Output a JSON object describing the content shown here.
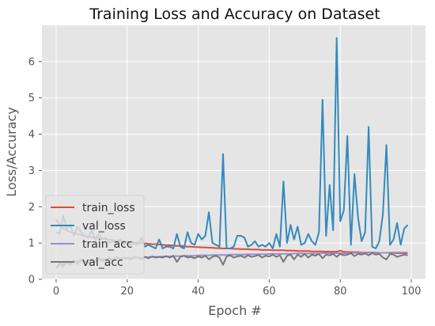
{
  "chart_data": {
    "type": "line",
    "title": "Training Loss and Accuracy on Dataset",
    "xlabel": "Epoch #",
    "ylabel": "Loss/Accuracy",
    "xlim": [
      -4,
      104
    ],
    "ylim": [
      0,
      7.0
    ],
    "grid": true,
    "legend_position": "lower-left",
    "xticks": [
      0,
      20,
      40,
      60,
      80,
      100
    ],
    "yticks": [
      0,
      1,
      2,
      3,
      4,
      5,
      6
    ],
    "x": [
      0,
      1,
      2,
      3,
      4,
      5,
      6,
      7,
      8,
      9,
      10,
      11,
      12,
      13,
      14,
      15,
      16,
      17,
      18,
      19,
      20,
      21,
      22,
      23,
      24,
      25,
      26,
      27,
      28,
      29,
      30,
      31,
      32,
      33,
      34,
      35,
      36,
      37,
      38,
      39,
      40,
      41,
      42,
      43,
      44,
      45,
      46,
      47,
      48,
      49,
      50,
      51,
      52,
      53,
      54,
      55,
      56,
      57,
      58,
      59,
      60,
      61,
      62,
      63,
      64,
      65,
      66,
      67,
      68,
      69,
      70,
      71,
      72,
      73,
      74,
      75,
      76,
      77,
      78,
      79,
      80,
      81,
      82,
      83,
      84,
      85,
      86,
      87,
      88,
      89,
      90,
      91,
      92,
      93,
      94,
      95,
      96,
      97,
      98,
      99
    ],
    "series": [
      {
        "name": "train_loss",
        "color": "#E24A33",
        "values": [
          1.65,
          1.5,
          1.4,
          1.35,
          1.3,
          1.28,
          1.25,
          1.22,
          1.2,
          1.18,
          1.16,
          1.14,
          1.13,
          1.12,
          1.1,
          1.09,
          1.08,
          1.07,
          1.06,
          1.05,
          1.04,
          1.03,
          1.02,
          1.01,
          1.0,
          0.99,
          0.98,
          0.97,
          0.97,
          0.96,
          0.95,
          0.94,
          0.94,
          0.93,
          0.92,
          0.92,
          0.91,
          0.9,
          0.9,
          0.89,
          0.89,
          0.88,
          0.88,
          0.87,
          0.87,
          0.86,
          0.86,
          0.85,
          0.85,
          0.85,
          0.84,
          0.84,
          0.83,
          0.83,
          0.83,
          0.82,
          0.82,
          0.82,
          0.81,
          0.81,
          0.81,
          0.8,
          0.8,
          0.8,
          0.8,
          0.79,
          0.79,
          0.79,
          0.78,
          0.78,
          0.78,
          0.78,
          0.77,
          0.77,
          0.77,
          0.77,
          0.76,
          0.76,
          0.76,
          0.76,
          0.79,
          0.76,
          0.75,
          0.75,
          0.75,
          0.75,
          0.74,
          0.74,
          0.74,
          0.74,
          0.74,
          0.73,
          0.73,
          0.73,
          0.73,
          0.73,
          0.72,
          0.72,
          0.72,
          0.72
        ]
      },
      {
        "name": "val_loss",
        "color": "#348ABD",
        "values": [
          1.3,
          1.25,
          1.75,
          1.4,
          1.5,
          1.2,
          1.45,
          1.3,
          1.2,
          1.15,
          1.35,
          1.1,
          1.25,
          1.1,
          1.15,
          1.0,
          1.05,
          1.0,
          1.1,
          0.95,
          1.0,
          0.95,
          1.0,
          0.95,
          1.15,
          0.9,
          0.95,
          0.9,
          0.85,
          1.1,
          0.85,
          0.9,
          0.9,
          0.85,
          1.25,
          0.9,
          0.85,
          1.3,
          1.0,
          0.95,
          1.25,
          1.1,
          1.2,
          1.85,
          1.0,
          0.95,
          0.9,
          3.45,
          0.85,
          0.85,
          0.9,
          1.2,
          1.2,
          1.15,
          0.9,
          0.95,
          1.05,
          0.9,
          0.95,
          0.9,
          1.0,
          0.85,
          1.25,
          0.9,
          2.7,
          1.0,
          1.5,
          1.1,
          1.45,
          0.95,
          1.0,
          1.25,
          1.05,
          0.95,
          1.3,
          4.95,
          1.2,
          2.6,
          1.35,
          6.65,
          1.6,
          1.9,
          3.95,
          0.95,
          2.9,
          1.7,
          1.05,
          1.3,
          4.2,
          0.9,
          0.85,
          1.05,
          1.8,
          3.7,
          0.95,
          1.1,
          1.55,
          0.95,
          1.4,
          1.5
        ]
      },
      {
        "name": "train_acc",
        "color": "#988ED5",
        "values": [
          0.33,
          0.4,
          0.42,
          0.45,
          0.46,
          0.48,
          0.49,
          0.5,
          0.51,
          0.52,
          0.53,
          0.54,
          0.55,
          0.55,
          0.56,
          0.56,
          0.57,
          0.57,
          0.58,
          0.58,
          0.59,
          0.59,
          0.6,
          0.6,
          0.6,
          0.61,
          0.61,
          0.62,
          0.62,
          0.62,
          0.63,
          0.63,
          0.63,
          0.64,
          0.64,
          0.64,
          0.65,
          0.65,
          0.65,
          0.65,
          0.66,
          0.66,
          0.66,
          0.66,
          0.67,
          0.67,
          0.67,
          0.67,
          0.67,
          0.68,
          0.68,
          0.68,
          0.68,
          0.68,
          0.69,
          0.69,
          0.69,
          0.69,
          0.69,
          0.69,
          0.7,
          0.7,
          0.7,
          0.7,
          0.7,
          0.7,
          0.7,
          0.71,
          0.71,
          0.71,
          0.71,
          0.71,
          0.71,
          0.71,
          0.71,
          0.72,
          0.72,
          0.72,
          0.72,
          0.72,
          0.72,
          0.72,
          0.72,
          0.72,
          0.73,
          0.73,
          0.73,
          0.73,
          0.73,
          0.73,
          0.73,
          0.73,
          0.73,
          0.73,
          0.74,
          0.74,
          0.74,
          0.74,
          0.74,
          0.74
        ]
      },
      {
        "name": "val_acc",
        "color": "#777777",
        "values": [
          0.3,
          0.45,
          0.35,
          0.5,
          0.4,
          0.52,
          0.42,
          0.55,
          0.5,
          0.45,
          0.55,
          0.48,
          0.58,
          0.5,
          0.55,
          0.6,
          0.5,
          0.62,
          0.55,
          0.6,
          0.58,
          0.55,
          0.62,
          0.6,
          0.55,
          0.62,
          0.58,
          0.63,
          0.6,
          0.62,
          0.6,
          0.64,
          0.6,
          0.65,
          0.48,
          0.62,
          0.65,
          0.6,
          0.62,
          0.58,
          0.63,
          0.6,
          0.65,
          0.55,
          0.62,
          0.65,
          0.6,
          0.4,
          0.63,
          0.66,
          0.6,
          0.63,
          0.65,
          0.6,
          0.66,
          0.62,
          0.64,
          0.67,
          0.6,
          0.65,
          0.63,
          0.68,
          0.62,
          0.66,
          0.48,
          0.65,
          0.68,
          0.55,
          0.68,
          0.62,
          0.7,
          0.6,
          0.68,
          0.65,
          0.7,
          0.58,
          0.68,
          0.66,
          0.7,
          0.62,
          0.7,
          0.66,
          0.68,
          0.72,
          0.64,
          0.7,
          0.68,
          0.71,
          0.66,
          0.72,
          0.68,
          0.7,
          0.6,
          0.55,
          0.7,
          0.68,
          0.62,
          0.65,
          0.68,
          0.66
        ]
      }
    ]
  }
}
